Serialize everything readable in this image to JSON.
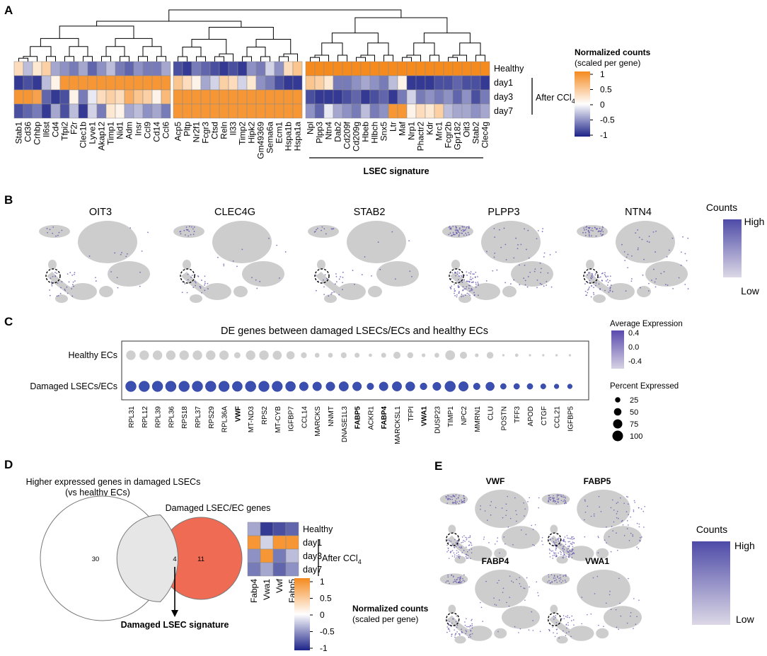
{
  "colors": {
    "high": "#f58a1f",
    "mid": "#ffffff",
    "low": "#1d2388",
    "umap_bg": "#cdcdcd",
    "umap_hi": "#5a4aae",
    "dot_healthy": "#cfcfcf",
    "dot_damaged": "#3b4fb0",
    "venn_orange": "#ef6b53",
    "venn_overlap": "#e6e6e6"
  },
  "panelA": {
    "letter": "A",
    "rows": [
      "Healthy",
      "day1",
      "day3",
      "day7"
    ],
    "bracket_label": "After CCl",
    "bracket_sub": "4",
    "genes": [
      "Stab1",
      "Cd36",
      "Crhbp",
      "Il6st",
      "Cd4",
      "Tfpi2",
      "F2r",
      "Clec1b",
      "Lyve1",
      "Akap12",
      "Timp1",
      "Nid1",
      "Adm",
      "Insr",
      "Ccl9",
      "Cd14",
      "Ccl6",
      "Acp5",
      "Pltp",
      "Nr2f1",
      "Fcgr3",
      "Ctsd",
      "Reln",
      "Il33",
      "Timp2",
      "Hipk2",
      "Gm49369",
      "Sema6a",
      "Ecm1",
      "Hspa1b",
      "Hspa1a",
      "Npl",
      "Plpp3",
      "Ntn4",
      "Dab2",
      "Cd209f",
      "Cd209g",
      "Hbeb",
      "Hlbch",
      "Snx5",
      "Ltr",
      "Maf",
      "Nrp1",
      "Phactr2",
      "Kdr",
      "Mrc1",
      "Fcgr2b",
      "Gpr182",
      "Oit3",
      "Stab2",
      "Clec4g"
    ],
    "values": [
      [
        0.3,
        -0.3,
        0.2,
        0.4,
        -0.4,
        -0.5,
        -0.6,
        -0.4,
        -0.7,
        -0.5,
        -0.3,
        -0.6,
        -0.7,
        -0.5,
        -0.6,
        -0.6,
        -0.4,
        -0.8,
        -0.9,
        -0.6,
        -0.7,
        -0.8,
        -0.9,
        -0.8,
        -0.9,
        -0.5,
        -0.6,
        -0.2,
        -0.5,
        0.3,
        0.5,
        1,
        1,
        1,
        1,
        1,
        1,
        1,
        1,
        1,
        1,
        1,
        1,
        1,
        1,
        1,
        1,
        1,
        1,
        1,
        1
      ],
      [
        -0.9,
        -0.8,
        -0.9,
        -0.3,
        0.1,
        0.9,
        0.9,
        0.9,
        0.9,
        0.9,
        0.9,
        0.9,
        0.9,
        0.9,
        0.9,
        0.9,
        0.9,
        0.5,
        0.3,
        0.1,
        -0.4,
        -0.2,
        0.4,
        0.3,
        -0.2,
        0.2,
        -0.5,
        -0.6,
        -0.8,
        -0.9,
        -0.9,
        0.5,
        0.4,
        0.2,
        -0.6,
        -0.6,
        -0.5,
        -0.4,
        -0.5,
        -0.6,
        -0.3,
        0.1,
        -0.9,
        -0.9,
        -0.9,
        -0.8,
        -0.8,
        -0.7,
        -0.8,
        -0.8,
        -0.9
      ],
      [
        0.9,
        0.9,
        0.8,
        -0.7,
        -0.9,
        -0.8,
        0.1,
        -0.6,
        -0.1,
        0.3,
        0.4,
        0.3,
        0.7,
        0.5,
        0.4,
        0.1,
        0.6,
        0.9,
        0.9,
        0.9,
        0.9,
        0.9,
        0.9,
        0.9,
        0.9,
        0.9,
        0.9,
        0.9,
        0.9,
        0.9,
        0.9,
        -0.8,
        -0.9,
        -0.9,
        -0.9,
        -0.8,
        -0.7,
        -0.9,
        -0.8,
        -0.7,
        -0.9,
        -0.6,
        -0.2,
        -0.6,
        -0.5,
        -0.6,
        -0.5,
        -0.7,
        -0.5,
        -0.8,
        -0.6
      ],
      [
        -0.8,
        -0.7,
        -0.6,
        -0.9,
        -0.4,
        -0.8,
        -0.3,
        -0.9,
        -0.2,
        -0.6,
        0.2,
        0.1,
        -0.4,
        -0.3,
        -0.5,
        -0.4,
        -0.6,
        0.9,
        0.9,
        0.9,
        0.9,
        0.9,
        0.9,
        0.9,
        0.9,
        0.9,
        0.9,
        0.9,
        0.9,
        0.9,
        0.9,
        -0.5,
        -0.7,
        -0.1,
        -0.4,
        -0.5,
        -0.6,
        -0.3,
        -0.6,
        -0.5,
        0.9,
        0.9,
        0.1,
        0.3,
        0.2,
        0.4,
        -0.3,
        -0.4,
        -0.4,
        -0.5,
        -0.4
      ]
    ],
    "signature_label": "LSEC signature",
    "legend": {
      "title": "Normalized counts",
      "subtitle": "(scaled per gene)",
      "ticks": [
        "1",
        "0.5",
        "0",
        "-0.5",
        "-1"
      ]
    }
  },
  "panelB": {
    "letter": "B",
    "titles": [
      "OIT3",
      "CLEC4G",
      "STAB2",
      "PLPP3",
      "NTN4"
    ],
    "expression_level": [
      0.15,
      0.15,
      0.1,
      0.7,
      0.5
    ],
    "legend": {
      "title": "Counts",
      "high": "High",
      "low": "Low"
    }
  },
  "panelC": {
    "letter": "C",
    "title": "DE genes between damaged LSECs/ECs and healthy ECs",
    "rows": [
      "Healthy ECs",
      "Damaged LSECs/ECs"
    ],
    "genes": [
      "RPL31",
      "RPL12",
      "RPL39",
      "RPL36",
      "RPS18",
      "RPL37",
      "RPS29",
      "RPL36A",
      "VWF",
      "MT-ND3",
      "RPS2",
      "MT-CYB",
      "IGFBP7",
      "CCL14",
      "MARCKS",
      "NNMT",
      "DNASE1L3",
      "FABP5",
      "ACKR1",
      "FABP4",
      "MARCKSL1",
      "TFPI",
      "VWA1",
      "DUSP23",
      "TIMP1",
      "NPC2",
      "MMRN1",
      "CLU",
      "POSTN",
      "TFF3",
      "APOD",
      "CTGF",
      "CCL21",
      "IGFBP5"
    ],
    "bold_genes": [
      "VWF",
      "FABP5",
      "FABP4",
      "VWA1"
    ],
    "healthy_pct": [
      80,
      80,
      80,
      80,
      80,
      80,
      80,
      78,
      35,
      80,
      80,
      72,
      60,
      30,
      20,
      20,
      30,
      22,
      10,
      22,
      45,
      32,
      12,
      20,
      85,
      45,
      12,
      40,
      5,
      10,
      5,
      5,
      5,
      5
    ],
    "damaged_pct": [
      100,
      100,
      100,
      100,
      100,
      100,
      100,
      100,
      90,
      100,
      100,
      97,
      88,
      70,
      70,
      70,
      80,
      70,
      40,
      70,
      80,
      75,
      42,
      60,
      100,
      82,
      40,
      65,
      30,
      30,
      30,
      25,
      20,
      20
    ],
    "legend_expression": {
      "title": "Average Expression",
      "ticks": [
        "0.4",
        "0.0",
        "-0.4"
      ]
    },
    "legend_percent": {
      "title": "Percent Expressed",
      "values": [
        25,
        50,
        75,
        100
      ]
    }
  },
  "panelD": {
    "letter": "D",
    "left_label_line1": "Higher expressed genes in damaged LSECs",
    "left_label_line2": "(vs healthy ECs)",
    "right_label": "Damaged LSEC/EC genes",
    "left_only": "30",
    "overlap": "4",
    "right_only": "11",
    "signature_label": "Damaged LSEC signature",
    "rows": [
      "Healthy",
      "day1",
      "day3",
      "day7"
    ],
    "bracket_label": "After CCl",
    "bracket_sub": "4",
    "genes": [
      "Fabp4",
      "Vwa1",
      "Vwf",
      "Fabp5"
    ],
    "values": [
      [
        -0.4,
        -0.9,
        -0.8,
        -0.7
      ],
      [
        0.9,
        -0.2,
        0.9,
        0.9
      ],
      [
        -0.5,
        0.9,
        -0.6,
        -0.3
      ],
      [
        -0.6,
        -0.4,
        -0.7,
        -0.5
      ]
    ],
    "legend": {
      "title": "Normalized counts",
      "subtitle": "(scaled per gene)",
      "ticks": [
        "1",
        "0.5",
        "0",
        "-0.5",
        "-1"
      ]
    }
  },
  "panelE": {
    "letter": "E",
    "titles": [
      "VWF",
      "FABP5",
      "FABP4",
      "VWA1"
    ],
    "expression_level": [
      0.6,
      0.85,
      0.45,
      0.3
    ],
    "legend": {
      "title": "Counts",
      "high": "High",
      "low": "Low"
    }
  }
}
